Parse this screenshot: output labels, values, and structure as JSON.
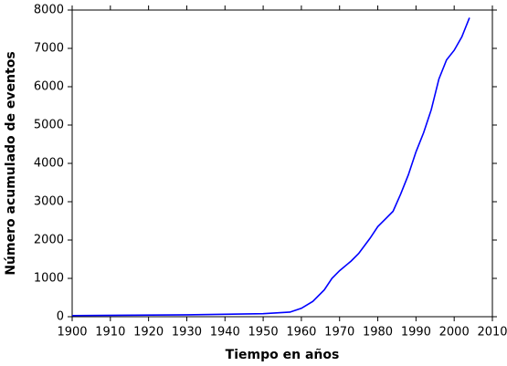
{
  "chart_data": {
    "type": "line",
    "x_label": "Tiempo en años",
    "y_label": "Número acumulado de eventos",
    "x": [
      1900,
      1930,
      1950,
      1957,
      1960,
      1963,
      1966,
      1968,
      1970,
      1973,
      1975,
      1978,
      1980,
      1982,
      1984,
      1986,
      1988,
      1990,
      1992,
      1994,
      1996,
      1998,
      2000,
      2002,
      2004
    ],
    "series": [
      {
        "color": "#0000ff",
        "values": [
          30,
          50,
          80,
          120,
          220,
          400,
          700,
          1000,
          1200,
          1450,
          1650,
          2050,
          2350,
          2550,
          2750,
          3200,
          3700,
          4300,
          4800,
          5400,
          6200,
          6700,
          6950,
          7300,
          7800
        ]
      }
    ],
    "xlim": [
      1900,
      2010
    ],
    "xticks": [
      1900,
      1910,
      1920,
      1930,
      1940,
      1950,
      1960,
      1970,
      1980,
      1990,
      2000,
      2010
    ],
    "ylim": [
      0,
      8000
    ],
    "yticks": [
      0,
      1000,
      2000,
      3000,
      4000,
      5000,
      6000,
      7000,
      8000
    ],
    "grid": false
  }
}
